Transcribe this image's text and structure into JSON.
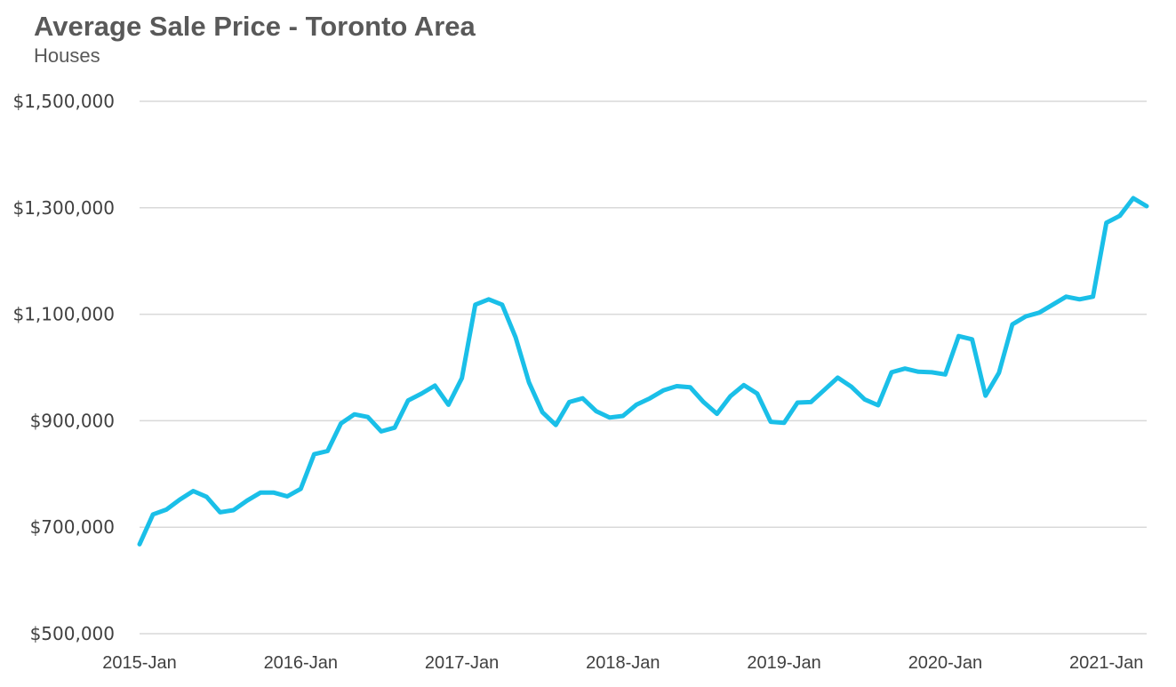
{
  "chart_data": {
    "type": "line",
    "title": "Average Sale Price - Toronto Area",
    "subtitle": "Houses",
    "xlabel": "",
    "ylabel": "",
    "ylim": [
      500000,
      1500000
    ],
    "y_ticks": [
      500000,
      700000,
      900000,
      1100000,
      1300000,
      1500000
    ],
    "y_tick_labels": [
      "$500,000",
      "$700,000",
      "$900,000",
      "$1,100,000",
      "$1,300,000",
      "$1,500,000"
    ],
    "x_tick_labels": [
      "2015-Jan",
      "2016-Jan",
      "2017-Jan",
      "2018-Jan",
      "2019-Jan",
      "2020-Jan",
      "2021-Jan"
    ],
    "grid": true,
    "series": [
      {
        "name": "Houses",
        "color": "#1ABFE8",
        "start": "2015-Jan",
        "values": [
          668000,
          724000,
          733000,
          752000,
          768000,
          757000,
          728000,
          732000,
          750000,
          765000,
          765000,
          758000,
          772000,
          837000,
          843000,
          895000,
          912000,
          907000,
          880000,
          887000,
          938000,
          951000,
          966000,
          930000,
          980000,
          1118000,
          1128000,
          1118000,
          1057000,
          972000,
          916000,
          892000,
          935000,
          942000,
          918000,
          906000,
          909000,
          930000,
          942000,
          957000,
          965000,
          963000,
          935000,
          913000,
          946000,
          967000,
          951000,
          898000,
          896000,
          934000,
          935000,
          958000,
          981000,
          964000,
          940000,
          929000,
          991000,
          998000,
          992000,
          991000,
          987000,
          1059000,
          1053000,
          947000,
          990000,
          1081000,
          1096000,
          1103000,
          1118000,
          1133000,
          1128000,
          1133000,
          1272000,
          1285000,
          1318000,
          1303000
        ]
      }
    ]
  }
}
